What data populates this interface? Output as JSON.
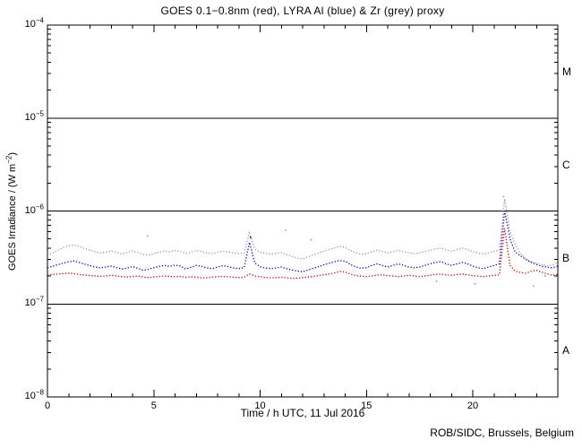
{
  "page": {
    "background": "#ffffff",
    "axis_color": "#000000"
  },
  "footer": {
    "credit": "ROB/SIDC, Brussels, Belgium"
  },
  "chart_data": {
    "type": "line",
    "title": "GOES 0.1−0.8nm (red), LYRA Al (blue) & Zr (grey) proxy",
    "xlabel": "Time / h UTC, 11 Jul 2016",
    "ylabel": "GOES Irradiance / (W m−2)",
    "ylabel_parts": {
      "prefix": "GOES Irradiance / (W m",
      "sup": "−2",
      "suffix": ")"
    },
    "x_range": [
      0,
      24
    ],
    "x_major_ticks": [
      0,
      5,
      10,
      15,
      20
    ],
    "x_minor_step": 1,
    "y_scale": "log",
    "y_decades": [
      -4,
      -5,
      -6,
      -7,
      -8
    ],
    "y_unit": "W m-2",
    "hlines_1e7": [
      1000,
      100,
      1
    ],
    "hlines": [
      1e-05,
      1e-06,
      1e-07
    ],
    "grid": "off",
    "legend": "in title",
    "class_bands": [
      {
        "label": "M",
        "top_exp": -4,
        "bottom_exp": -5
      },
      {
        "label": "C",
        "top_exp": -5,
        "bottom_exp": -6
      },
      {
        "label": "B",
        "top_exp": -6,
        "bottom_exp": -7
      },
      {
        "label": "A",
        "top_exp": -7,
        "bottom_exp": -8
      }
    ],
    "series": [
      {
        "name": "GOES 0.1-0.8nm",
        "color": "#dd0000",
        "x_start": 0,
        "x_step": 0.25,
        "values_1e7": [
          2.05,
          2.08,
          2.1,
          2.12,
          2.15,
          2.12,
          2.08,
          2.05,
          2.02,
          2.0,
          1.98,
          2.0,
          2.03,
          2.0,
          1.97,
          1.95,
          1.98,
          2.0,
          1.95,
          1.92,
          1.95,
          1.98,
          2.0,
          1.98,
          1.96,
          1.98,
          1.93,
          1.96,
          1.94,
          1.91,
          1.92,
          1.95,
          1.96,
          1.98,
          1.96,
          1.94,
          1.92,
          1.94,
          2.1,
          2.0,
          1.96,
          1.93,
          1.91,
          1.92,
          1.94,
          1.91,
          1.89,
          1.9,
          1.92,
          1.95,
          1.98,
          2.02,
          2.06,
          2.1,
          2.16,
          2.24,
          2.2,
          2.1,
          2.02,
          1.99,
          1.97,
          2.0,
          2.04,
          2.06,
          2.02,
          2.0,
          1.97,
          2.0,
          2.03,
          2.0,
          1.97,
          2.0,
          2.04,
          2.08,
          2.1,
          2.06,
          2.03,
          2.07,
          2.1,
          2.06,
          2.02,
          1.99,
          1.97,
          2.0,
          2.03,
          2.06,
          6.5,
          2.6,
          2.25,
          2.18,
          2.14,
          2.25,
          2.3,
          2.2,
          2.1,
          2.04,
          2.08
        ]
      },
      {
        "name": "LYRA Al proxy",
        "color": "#0000dd",
        "x_start": 0,
        "x_step": 0.25,
        "values_1e7": [
          2.45,
          2.55,
          2.65,
          2.75,
          2.85,
          2.9,
          2.8,
          2.68,
          2.58,
          2.5,
          2.45,
          2.5,
          2.56,
          2.46,
          2.38,
          2.44,
          2.52,
          2.42,
          2.3,
          2.36,
          2.46,
          2.54,
          2.6,
          2.54,
          2.62,
          2.56,
          2.38,
          2.48,
          2.6,
          2.54,
          2.44,
          2.4,
          2.5,
          2.58,
          2.52,
          2.44,
          2.4,
          2.46,
          4.6,
          2.75,
          2.52,
          2.44,
          2.4,
          2.44,
          2.5,
          2.4,
          2.32,
          2.26,
          2.22,
          2.32,
          2.42,
          2.52,
          2.64,
          2.74,
          2.84,
          2.94,
          2.88,
          2.66,
          2.5,
          2.42,
          2.46,
          2.6,
          2.7,
          2.6,
          2.5,
          2.6,
          2.7,
          2.6,
          2.5,
          2.45,
          2.5,
          2.6,
          2.7,
          2.8,
          2.86,
          2.7,
          2.6,
          2.7,
          2.8,
          2.7,
          2.55,
          2.45,
          2.4,
          2.5,
          2.6,
          2.7,
          10.0,
          5.0,
          3.6,
          3.3,
          3.0,
          2.8,
          2.65,
          2.55,
          2.48,
          2.45,
          2.55
        ]
      },
      {
        "name": "LYRA Zr proxy",
        "color": "#9a9a9a",
        "x_start": 0,
        "x_step": 0.25,
        "values_1e7": [
          3.3,
          3.55,
          3.8,
          4.05,
          4.25,
          4.3,
          4.15,
          3.95,
          3.78,
          3.64,
          3.55,
          3.62,
          3.72,
          3.58,
          3.46,
          3.58,
          3.72,
          3.58,
          3.4,
          3.35,
          3.48,
          3.62,
          3.72,
          3.65,
          3.76,
          3.68,
          3.48,
          3.6,
          3.76,
          3.66,
          3.54,
          3.48,
          3.6,
          3.7,
          3.64,
          3.54,
          3.48,
          3.56,
          5.8,
          3.9,
          3.6,
          3.5,
          3.44,
          3.5,
          3.56,
          3.4,
          3.24,
          3.12,
          3.05,
          3.2,
          3.36,
          3.52,
          3.7,
          3.86,
          4.0,
          4.15,
          4.05,
          3.75,
          3.55,
          3.42,
          3.48,
          3.66,
          3.78,
          3.66,
          3.55,
          3.66,
          3.78,
          3.66,
          3.55,
          3.48,
          3.55,
          3.66,
          3.78,
          3.92,
          4.0,
          3.82,
          3.7,
          3.85,
          4.0,
          3.85,
          3.65,
          3.52,
          3.44,
          3.55,
          3.7,
          3.8,
          13.5,
          6.0,
          4.4,
          3.5,
          3.05,
          2.85,
          2.75,
          2.65,
          2.58,
          2.62,
          2.8
        ]
      }
    ],
    "outliers": [
      {
        "x": 4.7,
        "v_1e7": 5.4,
        "series": 2
      },
      {
        "x": 9.55,
        "v_1e7": 5.2,
        "series": 1
      },
      {
        "x": 11.2,
        "v_1e7": 6.2,
        "series": 2
      },
      {
        "x": 12.4,
        "v_1e7": 4.9,
        "series": 2
      },
      {
        "x": 18.3,
        "v_1e7": 1.75,
        "series": 2
      },
      {
        "x": 20.1,
        "v_1e7": 1.65,
        "series": 2
      },
      {
        "x": 21.45,
        "v_1e7": 14.3,
        "series": 2
      },
      {
        "x": 22.85,
        "v_1e7": 1.55,
        "series": 2
      },
      {
        "x": 23.4,
        "v_1e7": 2.0,
        "series": 2
      }
    ]
  }
}
